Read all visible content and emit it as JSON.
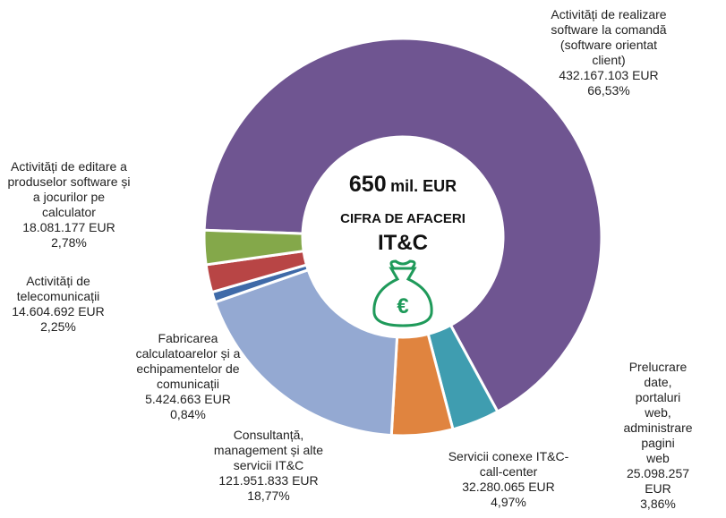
{
  "chart_data": {
    "type": "pie",
    "donut": true,
    "start_angle": 272,
    "center": {
      "amount": "650",
      "unit": "mil. EUR",
      "line2": "CIFRA DE AFACERI",
      "line3": "IT&C"
    },
    "categories": [
      "Activități de realizare\nsoftware la comandă\n(software orientat\nclient)",
      "Prelucrare date,\nportaluri web,\nadministrare pagini\nweb",
      "Servicii conexe IT&C-\ncall-center",
      "Consultanță,\nmanagement și alte\nservicii IT&C",
      "Fabricarea\ncalculatoarelor și a\nechipamentelor de\ncomunicații",
      "Activități de\ntelecomunicații",
      "Activități de editare a\nproduselor software și\na jocurilor pe\ncalculator"
    ],
    "amount_labels": [
      "432.167.103 EUR",
      "25.098.257 EUR",
      "32.280.065 EUR",
      "121.951.833 EUR",
      "5.424.663 EUR",
      "14.604.692 EUR",
      "18.081.177 EUR"
    ],
    "values": [
      66.53,
      3.86,
      4.97,
      18.77,
      0.84,
      2.25,
      2.78
    ],
    "value_labels": [
      "66,53%",
      "3,86%",
      "4,97%",
      "18,77%",
      "0,84%",
      "2,25%",
      "2,78%"
    ],
    "colors": [
      "#6f5591",
      "#3f9db0",
      "#e0843f",
      "#94a9d2",
      "#3f6aa8",
      "#b84545",
      "#84a84a"
    ]
  }
}
